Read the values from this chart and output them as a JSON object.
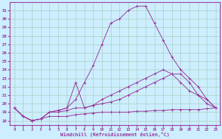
{
  "xlabel": "Windchill (Refroidissement éolien,°C)",
  "bg_color": "#cceeff",
  "grid_color": "#aaccbb",
  "line_color": "#993399",
  "xlim": [
    -0.5,
    23.5
  ],
  "ylim": [
    17.5,
    32.0
  ],
  "yticks": [
    18,
    19,
    20,
    21,
    22,
    23,
    24,
    25,
    26,
    27,
    28,
    29,
    30,
    31
  ],
  "xticks": [
    0,
    1,
    2,
    3,
    4,
    5,
    6,
    7,
    8,
    9,
    10,
    11,
    12,
    13,
    14,
    15,
    16,
    17,
    18,
    19,
    20,
    21,
    22,
    23
  ],
  "lines": [
    {
      "x": [
        0,
        1,
        2,
        3,
        4,
        5,
        6,
        7,
        8,
        9,
        10,
        11,
        12,
        13,
        14,
        15,
        16,
        17,
        18,
        19,
        20,
        21,
        22,
        23
      ],
      "y": [
        19.5,
        18.5,
        18.0,
        18.2,
        19.0,
        19.2,
        19.5,
        20.5,
        22.5,
        24.5,
        27.0,
        29.5,
        30.0,
        31.0,
        31.5,
        31.5,
        29.5,
        27.5,
        25.5,
        24.0,
        23.0,
        22.0,
        20.5,
        19.5
      ]
    },
    {
      "x": [
        0,
        1,
        2,
        3,
        4,
        5,
        6,
        7,
        8,
        9,
        10,
        11,
        12,
        13,
        14,
        15,
        16,
        17,
        18,
        19,
        20,
        21,
        22,
        23
      ],
      "y": [
        19.5,
        18.5,
        18.0,
        18.2,
        19.0,
        19.2,
        19.5,
        22.5,
        19.5,
        19.8,
        20.5,
        21.0,
        21.5,
        22.0,
        22.5,
        23.0,
        23.5,
        24.0,
        23.5,
        22.5,
        21.5,
        21.0,
        20.5,
        19.5
      ]
    },
    {
      "x": [
        0,
        1,
        2,
        3,
        4,
        5,
        6,
        7,
        8,
        9,
        10,
        11,
        12,
        13,
        14,
        15,
        16,
        17,
        18,
        19,
        20,
        21,
        22,
        23
      ],
      "y": [
        19.5,
        18.5,
        18.0,
        18.2,
        19.0,
        19.0,
        19.2,
        19.5,
        19.5,
        19.8,
        20.0,
        20.2,
        20.5,
        21.0,
        21.5,
        22.0,
        22.5,
        23.0,
        23.5,
        23.5,
        22.5,
        21.0,
        20.0,
        19.5
      ]
    },
    {
      "x": [
        0,
        1,
        2,
        3,
        4,
        5,
        6,
        7,
        8,
        9,
        10,
        11,
        12,
        13,
        14,
        15,
        16,
        17,
        18,
        19,
        20,
        21,
        22,
        23
      ],
      "y": [
        19.5,
        18.5,
        18.0,
        18.2,
        18.5,
        18.5,
        18.5,
        18.7,
        18.8,
        18.9,
        19.0,
        19.0,
        19.0,
        19.0,
        19.1,
        19.1,
        19.2,
        19.2,
        19.3,
        19.3,
        19.3,
        19.3,
        19.4,
        19.5
      ]
    }
  ]
}
